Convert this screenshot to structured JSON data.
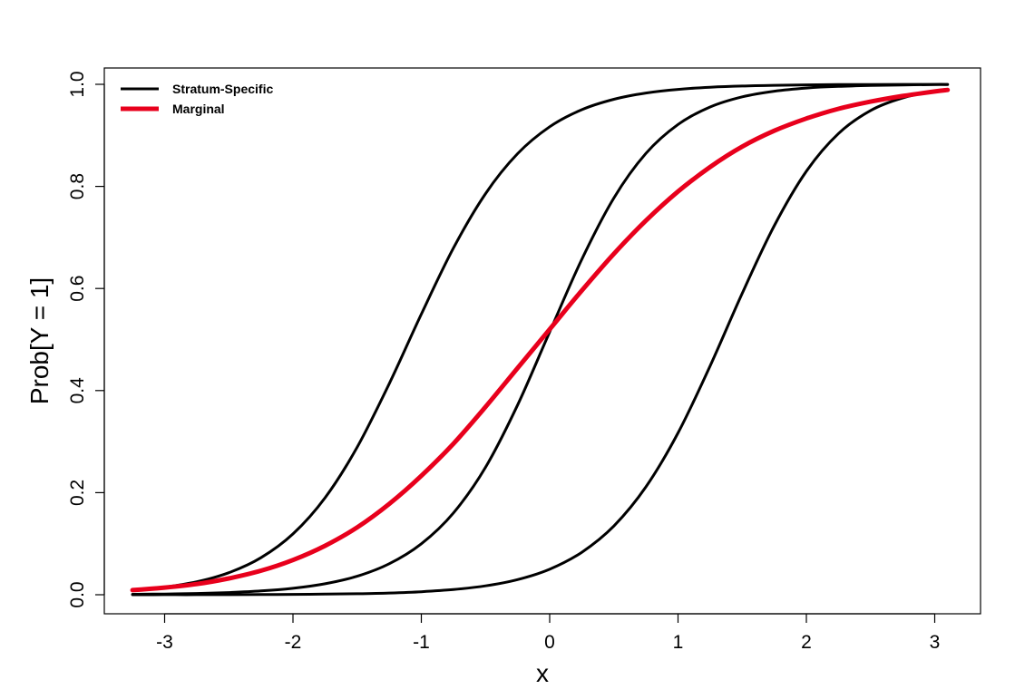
{
  "chart_data": {
    "type": "line",
    "title": "",
    "xlabel": "x",
    "ylabel": "Prob[Y = 1]",
    "xlim": [
      -3.25,
      3.1
    ],
    "ylim": [
      0,
      1
    ],
    "x_ticks": [
      -3,
      -2,
      -1,
      0,
      1,
      2,
      3
    ],
    "x_tick_labels": [
      "-3",
      "-2",
      "-1",
      "0",
      "1",
      "2",
      "3"
    ],
    "y_ticks": [
      0,
      0.2,
      0.4,
      0.6,
      0.8,
      1
    ],
    "y_tick_labels": [
      "0.0",
      "0.2",
      "0.4",
      "0.6",
      "0.8",
      "1.0"
    ],
    "grid": false,
    "legend": {
      "position": "top-left",
      "entries": [
        {
          "label": "Stratum-Specific",
          "color": "#000000"
        },
        {
          "label": "Marginal",
          "color": "#e8001c"
        }
      ]
    },
    "x": [
      -3.25,
      -3.0,
      -2.75,
      -2.5,
      -2.25,
      -2.0,
      -1.75,
      -1.5,
      -1.25,
      -1.0,
      -0.75,
      -0.5,
      -0.25,
      0.0,
      0.25,
      0.5,
      0.75,
      1.0,
      1.25,
      1.5,
      1.75,
      2.0,
      2.25,
      2.5,
      2.75,
      3.0,
      3.1
    ],
    "series": [
      {
        "group": "Stratum-Specific",
        "color": "#000000",
        "values": [
          0.0087,
          0.0149,
          0.0254,
          0.0431,
          0.0724,
          0.1192,
          0.19,
          0.2891,
          0.4134,
          0.5498,
          0.6792,
          0.7858,
          0.8641,
          0.9168,
          0.9503,
          0.9707,
          0.9829,
          0.9901,
          0.9943,
          0.9967,
          0.9981,
          0.9989,
          0.9994,
          0.9996,
          0.9998,
          0.9999,
          0.9999
        ]
      },
      {
        "group": "Stratum-Specific",
        "color": "#000000",
        "values": [
          0.0009,
          0.0015,
          0.0025,
          0.0043,
          0.0074,
          0.0126,
          0.0215,
          0.0363,
          0.0607,
          0.0998,
          0.1602,
          0.2497,
          0.3716,
          0.515,
          0.657,
          0.7773,
          0.8647,
          0.9214,
          0.9556,
          0.9754,
          0.9865,
          0.9927,
          0.996,
          0.9978,
          0.9988,
          0.9994,
          0.9995
        ]
      },
      {
        "group": "Stratum-Specific",
        "color": "#000000",
        "values": [
          0.0,
          0.0001,
          0.0001,
          0.0002,
          0.0004,
          0.0007,
          0.0012,
          0.002,
          0.0034,
          0.0059,
          0.0102,
          0.0174,
          0.0296,
          0.05,
          0.0832,
          0.1347,
          0.2113,
          0.317,
          0.4484,
          0.5906,
          0.723,
          0.8297,
          0.9036,
          0.9486,
          0.9734,
          0.9865,
          0.9903
        ]
      },
      {
        "name": "Marginal",
        "color": "#e8001c",
        "values": [
          0.009,
          0.014,
          0.021,
          0.032,
          0.047,
          0.068,
          0.096,
          0.132,
          0.178,
          0.233,
          0.296,
          0.368,
          0.444,
          0.52,
          0.596,
          0.668,
          0.733,
          0.79,
          0.838,
          0.878,
          0.909,
          0.933,
          0.952,
          0.966,
          0.977,
          0.986,
          0.989
        ]
      }
    ]
  }
}
